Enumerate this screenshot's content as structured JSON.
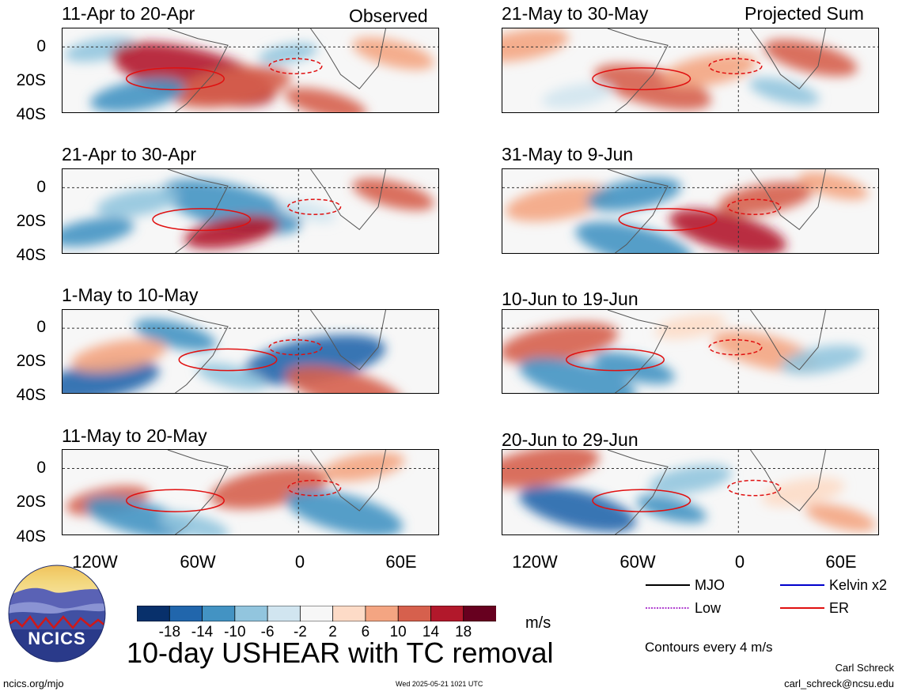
{
  "headers": {
    "left": "Observed",
    "right": "Projected Sum"
  },
  "panels_left": [
    {
      "title": "11-Apr to 20-Apr"
    },
    {
      "title": "21-Apr to 30-Apr"
    },
    {
      "title": "1-May to 10-May"
    },
    {
      "title": "11-May to 20-May"
    }
  ],
  "panels_right": [
    {
      "title": "21-May to 30-May"
    },
    {
      "title": "31-May to 9-Jun"
    },
    {
      "title": "10-Jun to 19-Jun"
    },
    {
      "title": "20-Jun to 29-Jun"
    }
  ],
  "y_ticks": [
    "0",
    "20S",
    "40S"
  ],
  "x_ticks": [
    "120W",
    "60W",
    "0",
    "60E"
  ],
  "colorbar": {
    "colors": [
      "#08306b",
      "#2166ac",
      "#4393c3",
      "#92c5de",
      "#d1e5f0",
      "#f7f7f7",
      "#fddbc7",
      "#f4a582",
      "#d6604d",
      "#b2182b",
      "#67001f"
    ],
    "labels": [
      "-18",
      "-14",
      "-10",
      "-6",
      "-2",
      "2",
      "6",
      "10",
      "14",
      "18"
    ],
    "units": "m/s"
  },
  "legend": {
    "items": [
      {
        "label": "MJO",
        "color": "#000000",
        "style": "solid"
      },
      {
        "label": "Kelvin x2",
        "color": "#0000cc",
        "style": "solid"
      },
      {
        "label": "Low",
        "color": "#b040d0",
        "style": "dotted"
      },
      {
        "label": "ER",
        "color": "#e01010",
        "style": "solid"
      }
    ],
    "contours_note": "Contours every 4 m/s"
  },
  "main_title": "10-day USHEAR with TC removal",
  "logo_text": "NCICS",
  "footer": {
    "left": "ncics.org/mjo",
    "center": "Wed 2025-05-21 1021 UTC",
    "author": "Carl Schreck",
    "email": "carl_schreck@ncsu.edu"
  }
}
